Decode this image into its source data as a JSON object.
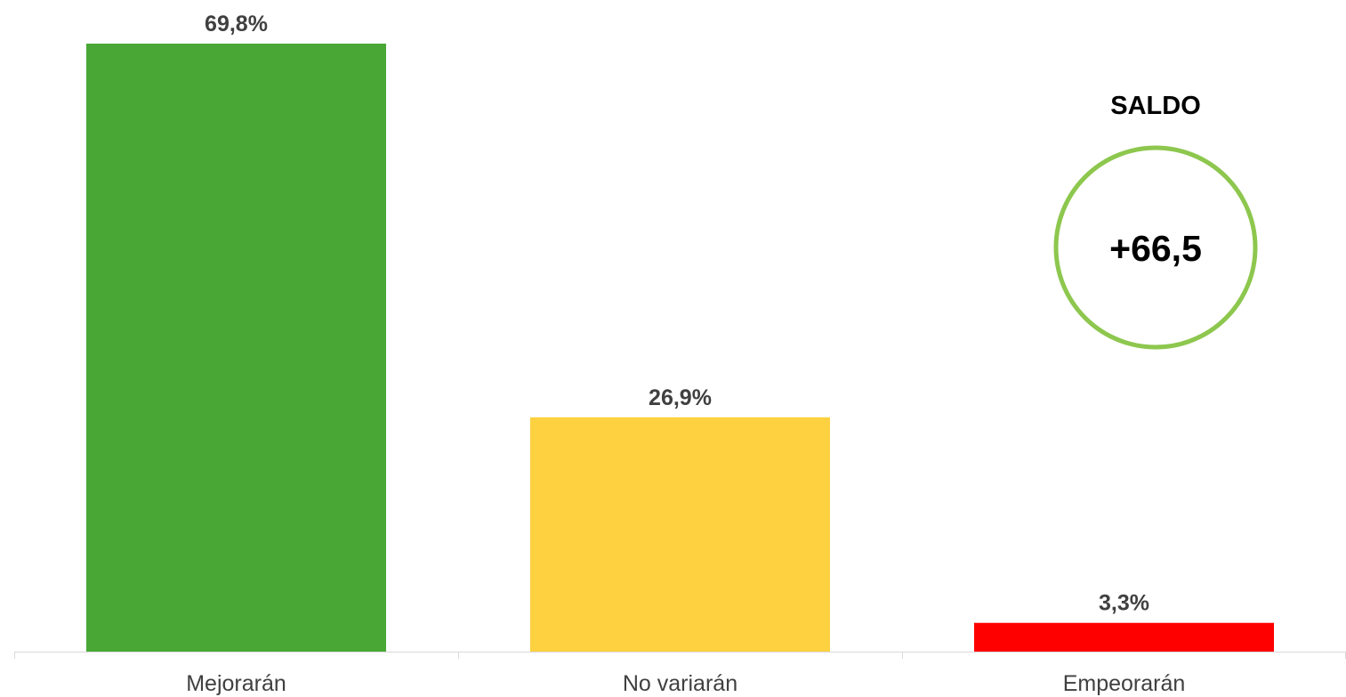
{
  "chart_data": {
    "type": "bar",
    "categories": [
      "Mejorarán",
      "No variarán",
      "Empeorarán"
    ],
    "values": [
      69.8,
      26.9,
      3.3
    ],
    "value_labels": [
      "69,8%",
      "26,9%",
      "3,3%"
    ],
    "bar_colors": [
      "#49a835",
      "#fdd13f",
      "#ff0000"
    ],
    "title": "",
    "xlabel": "",
    "ylabel": "",
    "ylim": [
      0,
      69.8
    ],
    "grid": false,
    "legend": "none"
  },
  "saldo": {
    "title": "SALDO",
    "value": "+66,5",
    "ring_color": "#8dc74e"
  },
  "colors": {
    "axis": "#d9d9d9",
    "label_text": "#404040"
  }
}
